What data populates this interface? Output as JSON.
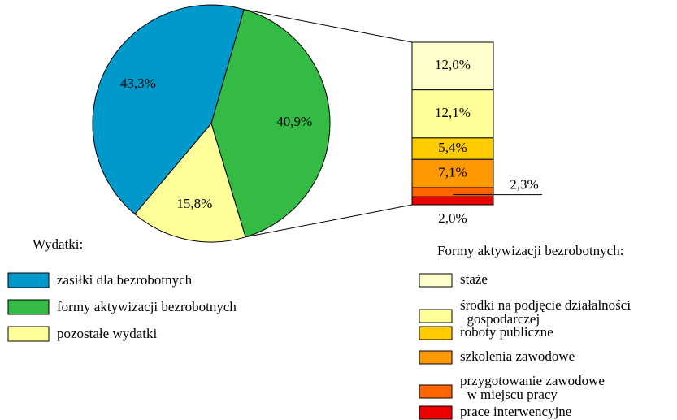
{
  "chart_data": [
    {
      "type": "pie",
      "legend_title": "Wydatki:",
      "categories": [
        "zasiłki dla bezrobotnych",
        "formy aktywizacji bezrobotnych",
        "pozostałe wydatki"
      ],
      "values": [
        43.3,
        40.9,
        15.8
      ],
      "value_labels": [
        "43,3%",
        "40,9%",
        "15,8%"
      ],
      "colors": [
        "#0099cc",
        "#33bb44",
        "#ffff99"
      ]
    },
    {
      "type": "bar",
      "stacked": true,
      "legend_title": "Formy aktywizacji bezrobotnych:",
      "categories": [
        "staże",
        "środki na podjęcie działalności\n  gospodarczej",
        "roboty publiczne",
        "szkolenia zawodowe",
        "przygotowanie zawodowe\n  w miejscu pracy",
        "prace interwencyjne"
      ],
      "values": [
        12.0,
        12.1,
        5.4,
        7.1,
        2.3,
        2.0
      ],
      "value_labels": [
        "12,0%",
        "12,1%",
        "5,4%",
        "7,1%",
        "2,3%",
        "2,0%"
      ],
      "colors": [
        "#ffffcc",
        "#ffff99",
        "#ffcc00",
        "#ff9900",
        "#ff6600",
        "#ee0000"
      ]
    }
  ]
}
